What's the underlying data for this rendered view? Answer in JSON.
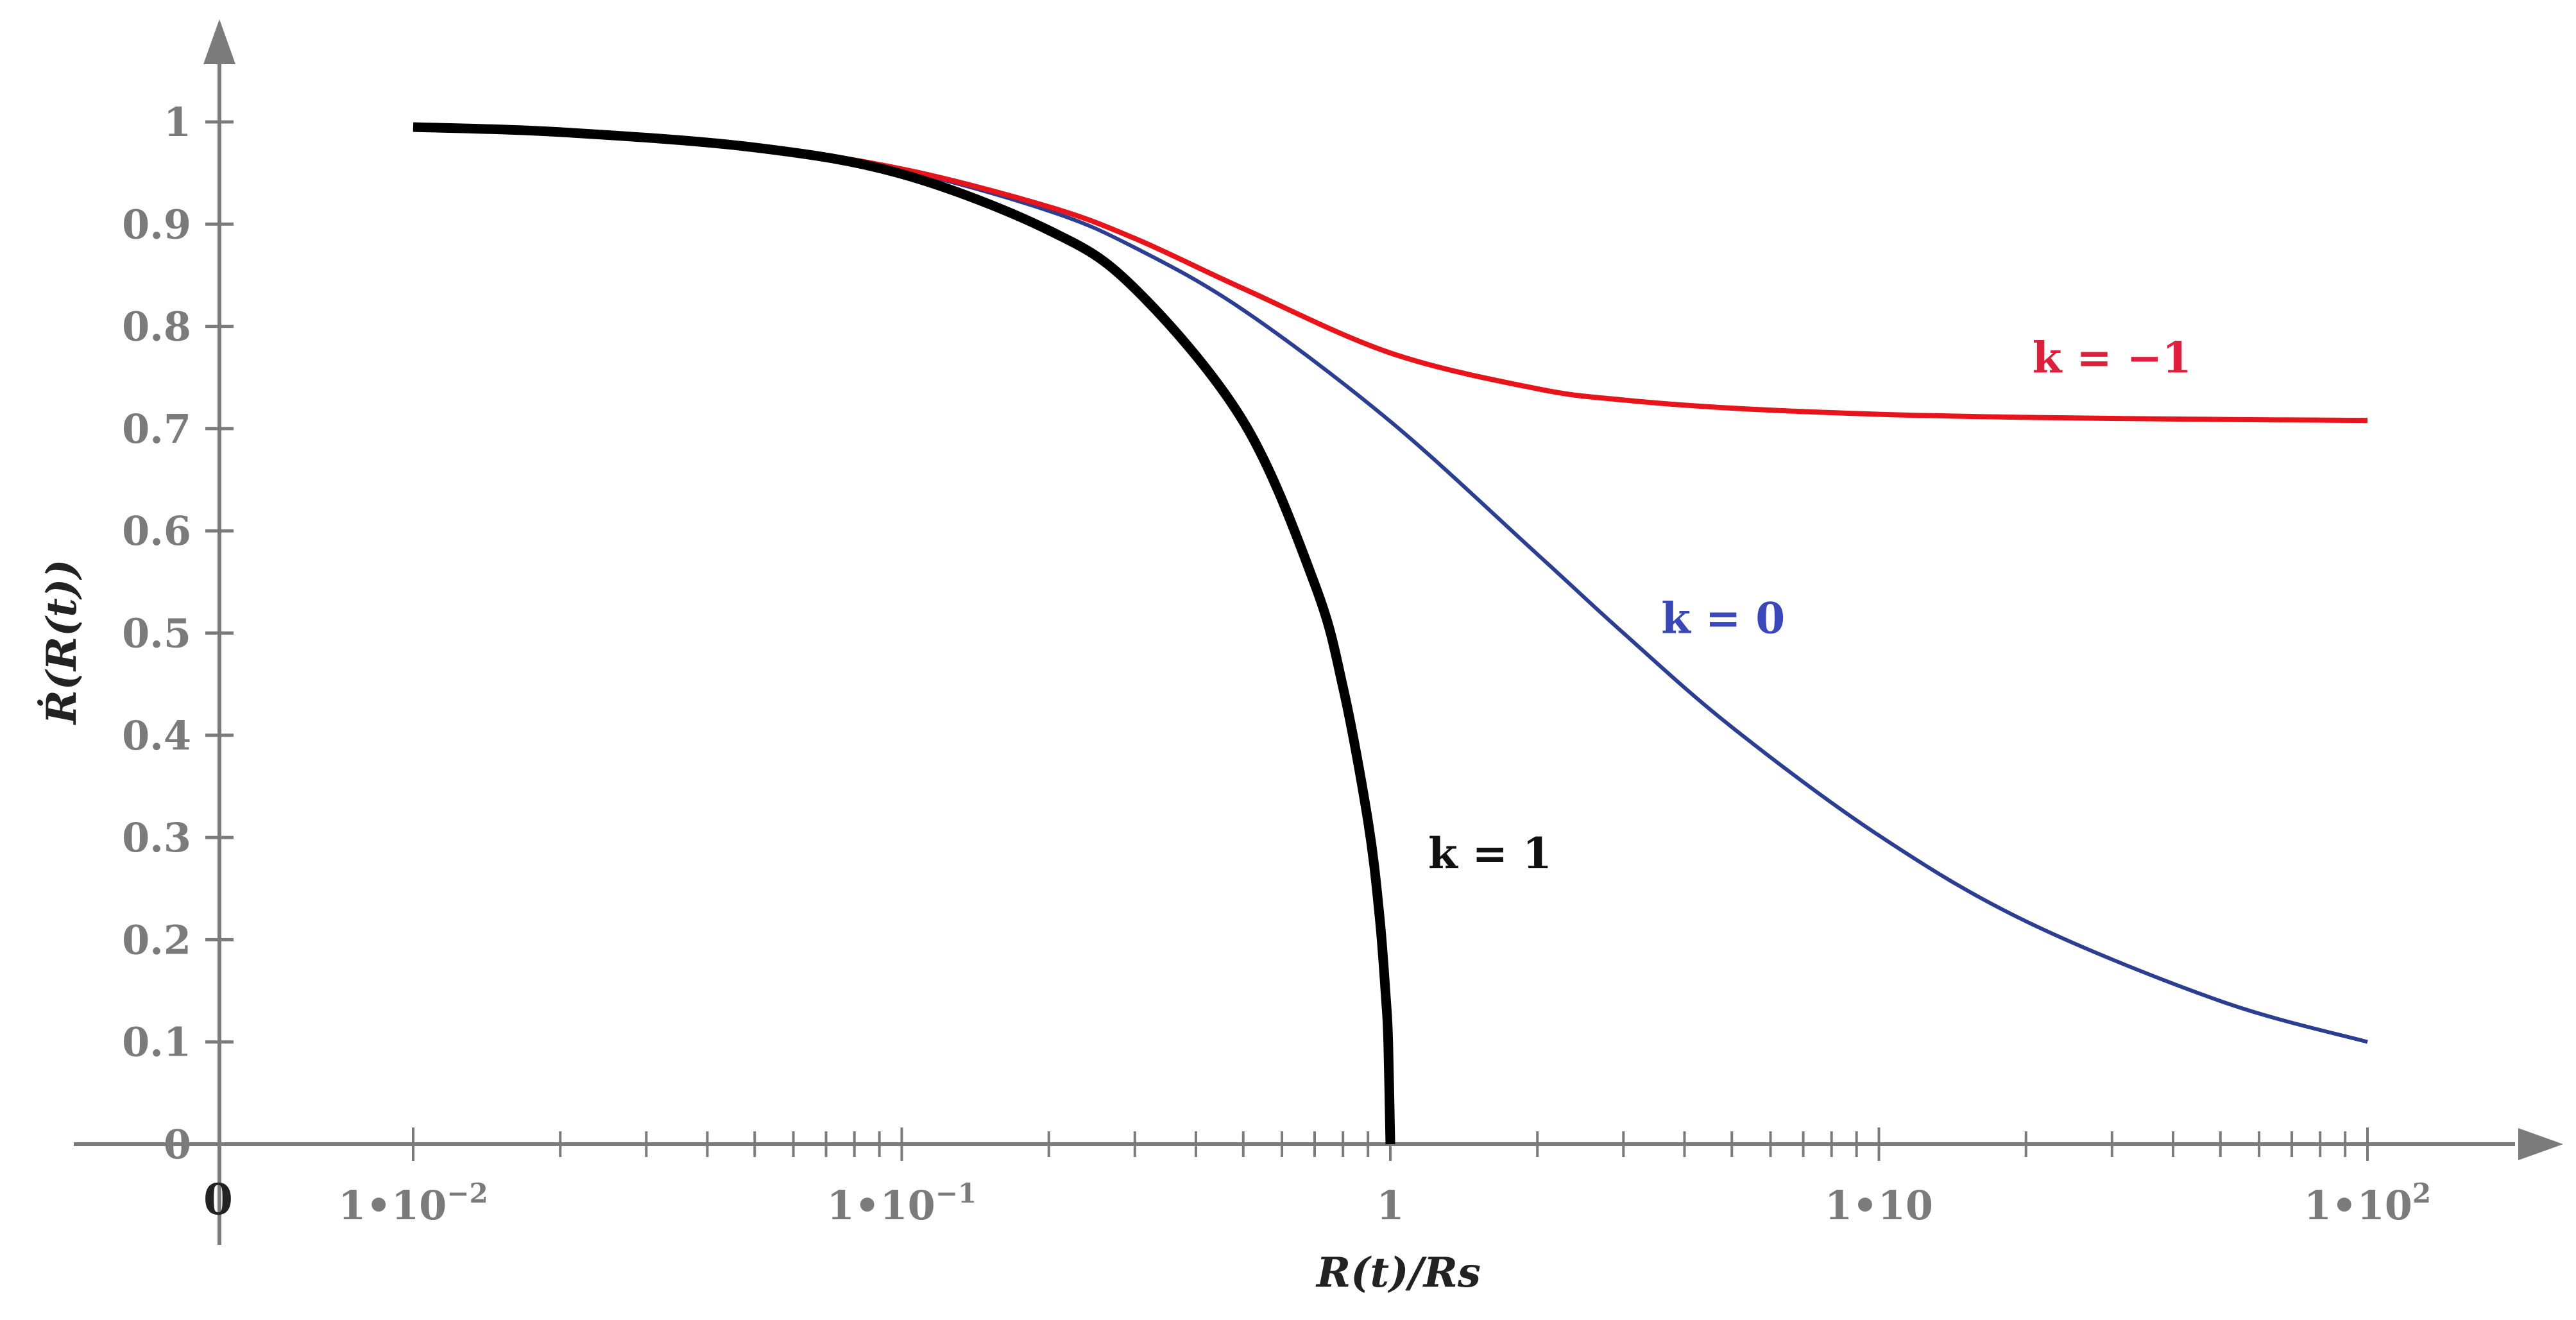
{
  "chart_data": {
    "type": "line",
    "x_scale": "log",
    "xlabel": "R(t)/Rs",
    "ylabel": "Ṙ(R(t))",
    "xlim": [
      0.01,
      100
    ],
    "ylim": [
      0,
      1
    ],
    "origin_label": "0",
    "x_ticks": [
      {
        "value": 0.01,
        "base": "1•10",
        "exp": "−2"
      },
      {
        "value": 0.1,
        "base": "1•10",
        "exp": "−1"
      },
      {
        "value": 1,
        "base": "1",
        "exp": ""
      },
      {
        "value": 10,
        "base": "1•10",
        "exp": ""
      },
      {
        "value": 100,
        "base": "1•10",
        "exp": "2"
      }
    ],
    "y_ticks": [
      0,
      0.1,
      0.2,
      0.3,
      0.4,
      0.5,
      0.6,
      0.7,
      0.8,
      0.9,
      1
    ],
    "y_tick_labels": [
      "0",
      "0.1",
      "0.2",
      "0.3",
      "0.4",
      "0.5",
      "0.6",
      "0.7",
      "0.8",
      "0.9",
      "1"
    ],
    "grid": false,
    "series": [
      {
        "name": "k = 1",
        "color": "#000000",
        "x": [
          0.01,
          0.02,
          0.05,
          0.1,
          0.2,
          0.3,
          0.5,
          0.7,
          0.8,
          0.9,
          0.95,
          0.98,
          0.99,
          1.0
        ],
        "y": [
          0.995,
          0.99,
          0.975,
          0.949,
          0.894,
          0.837,
          0.707,
          0.548,
          0.447,
          0.316,
          0.224,
          0.141,
          0.1,
          0.0
        ]
      },
      {
        "name": "k = 0",
        "color": "#2b3e8f",
        "x": [
          0.01,
          0.02,
          0.05,
          0.1,
          0.2,
          0.3,
          0.5,
          1,
          2,
          3,
          5,
          10,
          20,
          50,
          100
        ],
        "y": [
          0.995,
          0.99,
          0.976,
          0.953,
          0.913,
          0.877,
          0.816,
          0.707,
          0.577,
          0.5,
          0.408,
          0.302,
          0.218,
          0.14,
          0.1
        ]
      },
      {
        "name": "k = −1",
        "color": "#e8141b",
        "x": [
          0.01,
          0.02,
          0.05,
          0.1,
          0.2,
          0.3,
          0.5,
          1,
          2,
          3,
          5,
          10,
          20,
          50,
          100
        ],
        "y": [
          0.995,
          0.99,
          0.976,
          0.954,
          0.917,
          0.886,
          0.837,
          0.774,
          0.739,
          0.728,
          0.72,
          0.714,
          0.711,
          0.709,
          0.708
        ]
      }
    ],
    "annotations": [
      {
        "text": "k = −1",
        "color": "#dd1f3d",
        "x": 30,
        "y": 0.755
      },
      {
        "text": "k = 0",
        "color": "#3a47b6",
        "x": 4.8,
        "y": 0.5
      },
      {
        "text": "k = 1",
        "color": "#111111",
        "x": 1.6,
        "y": 0.27
      }
    ]
  }
}
